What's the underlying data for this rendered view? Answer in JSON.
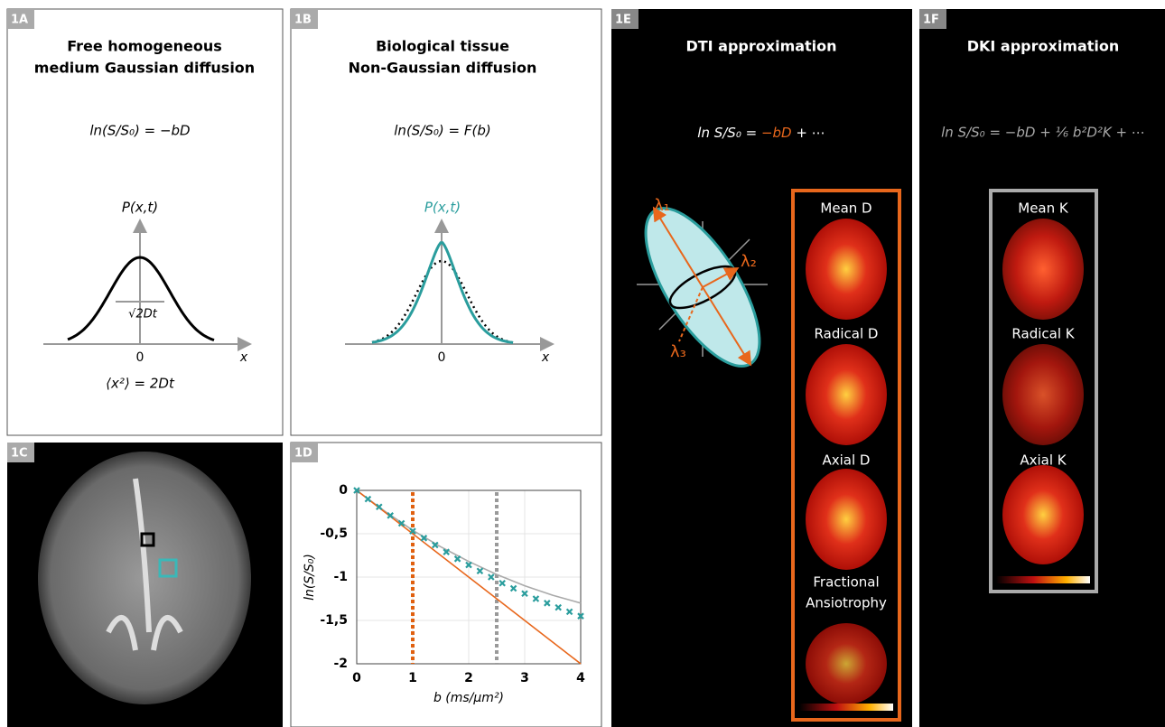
{
  "panels": {
    "A": {
      "label": "1A",
      "title": [
        "Free homogeneous",
        "medium Gaussian diffusion"
      ],
      "equation": "ln(S/S₀) = −bD",
      "curve_label": "P(x,t)",
      "width_label": "√2Dt",
      "origin": "0",
      "axis": "x",
      "relation": "⟨x²⟩ = 2Dt"
    },
    "B": {
      "label": "1B",
      "title": [
        "Biological tissue",
        "Non-Gaussian diffusion"
      ],
      "equation": "ln(S/S₀) = F(b)",
      "curve_label": "P(x,t)",
      "origin": "0",
      "axis": "x"
    },
    "C": {
      "label": "1C"
    },
    "E": {
      "label": "1E",
      "title": "DTI approximation",
      "equation": [
        "ln S/S₀ = ",
        "−bD",
        " + ⋯"
      ],
      "lambdas": [
        "λ₁",
        "λ₂",
        "λ₃"
      ],
      "maps": [
        "Mean D",
        "Radical D",
        "Axial D",
        "Fractional",
        "Ansiotrophy"
      ]
    },
    "F": {
      "label": "1F",
      "title": "DKI approximation",
      "equation": "ln S/S₀ = −bD + ⅙ b²D²K + ⋯",
      "maps": [
        "Mean K",
        "Radical K",
        "Axial K"
      ]
    }
  },
  "chart_data": {
    "type": "scatter",
    "panel_label": "1D",
    "xlabel": "b (ms/μm²)",
    "ylabel": "ln(S/S₀)",
    "xlim": [
      0,
      4
    ],
    "ylim": [
      -2,
      0
    ],
    "xticks": [
      0,
      1,
      2,
      3,
      4
    ],
    "yticks": [
      0,
      {
        "value": -0.5,
        "label": "-0,5"
      },
      -1,
      {
        "value": -1.5,
        "label": "-1,5"
      },
      -2
    ],
    "grid": true,
    "series": [
      {
        "color": "#2a9d9d",
        "marker": "x",
        "x": [
          0,
          0.2,
          0.4,
          0.6,
          0.8,
          1.0,
          1.2,
          1.4,
          1.6,
          1.8,
          2.0,
          2.2,
          2.4,
          2.6,
          2.8,
          3.0,
          3.2,
          3.4,
          3.6,
          3.8,
          4.0
        ],
        "values": [
          0,
          -0.1,
          -0.19,
          -0.29,
          -0.38,
          -0.47,
          -0.55,
          -0.63,
          -0.71,
          -0.79,
          -0.86,
          -0.93,
          -1.0,
          -1.07,
          -1.13,
          -1.19,
          -1.25,
          -1.3,
          -1.35,
          -1.4,
          -1.45
        ]
      },
      {
        "color": "#e8671c",
        "marker": "line",
        "x": [
          0,
          4
        ],
        "values": [
          0,
          -2
        ]
      },
      {
        "color": "#aaaaaa",
        "marker": "line",
        "x": [
          0,
          0.5,
          1,
          1.5,
          2,
          2.5,
          3,
          3.5,
          4
        ],
        "values": [
          0,
          -0.24,
          -0.46,
          -0.65,
          -0.82,
          -0.97,
          -1.1,
          -1.21,
          -1.3
        ]
      }
    ],
    "vlines": [
      {
        "x": 1,
        "color": "#e0600f"
      },
      {
        "x": 2.5,
        "color": "#999999"
      }
    ]
  }
}
